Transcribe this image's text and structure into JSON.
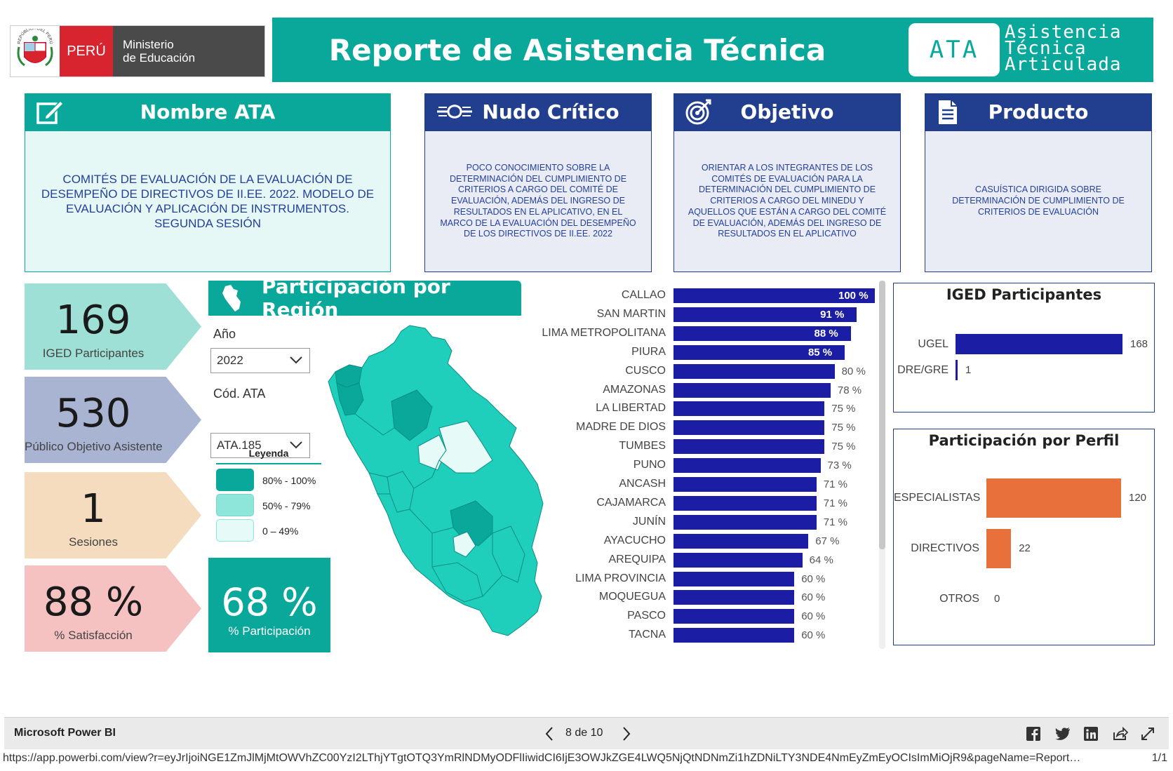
{
  "header": {
    "peru_label": "PERÚ",
    "ministry_line1": "Ministerio",
    "ministry_line2": "de Educación",
    "seal_text": "REPÚBLICA DEL PERÚ",
    "title": "Reporte de Asistencia Técnica",
    "ata_logo": "ATA",
    "ata_line1": "Asistencia",
    "ata_line2": "Técnica",
    "ata_line3": "Articulada"
  },
  "cards": {
    "nombre": {
      "title": "Nombre ATA",
      "text": "COMITÉS DE EVALUACIÓN DE LA EVALUACIÓN DE DESEMPEÑO DE DIRECTIVOS DE II.EE. 2022. MODELO DE EVALUACIÓN Y APLICACIÓN DE INSTRUMENTOS. SEGUNDA SESIÓN"
    },
    "nudo": {
      "title": "Nudo Crítico",
      "text": "POCO CONOCIMIENTO SOBRE LA DETERMINACIÓN DEL CUMPLIMIENTO DE CRITERIOS A CARGO DEL COMITÉ DE EVALUACIÓN, ADEMÁS DEL INGRESO DE RESULTADOS EN EL APLICATIVO, EN EL MARCO DE LA EVALUACIÓN DEL DESEMPEÑO DE LOS DIRECTIVOS DE II.EE. 2022"
    },
    "objetivo": {
      "title": "Objetivo",
      "text": "ORIENTAR A LOS INTEGRANTES DE LOS COMITÉS DE EVALUACIÓN PARA LA DETERMINACIÓN DEL CUMPLIMIENTO DE CRITERIOS A CARGO DEL MINEDU Y AQUELLOS QUE ESTÁN A CARGO DEL COMITÉ DE EVALUACIÓN, ADEMÁS DEL INGRESO DE RESULTADOS EN EL APLICATIVO"
    },
    "producto": {
      "title": "Producto",
      "text": "CASUÍSTICA DIRIGIDA SOBRE DETERMINACIÓN DE CUMPLIMIENTO DE CRITERIOS DE EVALUACIÓN"
    }
  },
  "kpis": {
    "iged": {
      "value": "169",
      "label": "IGED Participantes",
      "color": "#9fe0d6"
    },
    "publico": {
      "value": "530",
      "label": "Público Objetivo Asistente",
      "color": "#a9b4d2"
    },
    "sesiones": {
      "value": "1",
      "label": "Sesiones",
      "color": "#f5dcbf"
    },
    "satisfaccion": {
      "value": "88 %",
      "label": "% Satisfacción",
      "color": "#f5c1c1"
    }
  },
  "region": {
    "title": "Participación por Región",
    "year_label": "Año",
    "year_value": "2022",
    "code_label": "Cód. ATA",
    "code_value": "ATA.185",
    "legend_title": "Leyenda",
    "legend": [
      {
        "label": "80% - 100%",
        "color": "#0aa89a"
      },
      {
        "label": "50% - 79%",
        "color": "#8ee6da"
      },
      {
        "label": "0 – 49%",
        "color": "#e6fbf8"
      }
    ],
    "participation_value": "68 %",
    "participation_label": "% Participación"
  },
  "chart_data": [
    {
      "type": "bar",
      "orientation": "horizontal",
      "categories": [
        "CALLAO",
        "SAN MARTIN",
        "LIMA METROPOLITANA",
        "PIURA",
        "CUSCO",
        "AMAZONAS",
        "LA LIBERTAD",
        "MADRE DE DIOS",
        "TUMBES",
        "PUNO",
        "ANCASH",
        "CAJAMARCA",
        "JUNÍN",
        "AYACUCHO",
        "AREQUIPA",
        "LIMA PROVINCIA",
        "MOQUEGUA",
        "PASCO",
        "TACNA"
      ],
      "values": [
        100,
        91,
        88,
        85,
        80,
        78,
        75,
        75,
        75,
        73,
        71,
        71,
        71,
        67,
        64,
        60,
        60,
        60,
        60
      ],
      "value_labels": [
        "100 %",
        "91 %",
        "88 %",
        "85 %",
        "80 %",
        "78 %",
        "75 %",
        "75 %",
        "75 %",
        "73 %",
        "71 %",
        "71 %",
        "71 %",
        "67 %",
        "64 %",
        "60 %",
        "60 %",
        "60 %",
        "60 %"
      ],
      "color": "#1b1ea5",
      "xlim": [
        0,
        100
      ]
    },
    {
      "type": "bar",
      "orientation": "horizontal",
      "title": "IGED Participantes",
      "categories": [
        "UGEL",
        "DRE/GRE"
      ],
      "values": [
        168,
        1
      ],
      "color": "#1b1ea5"
    },
    {
      "type": "bar",
      "orientation": "horizontal",
      "title": "Participación por Perfil",
      "categories": [
        "ESPECIALISTAS",
        "DIRECTIVOS",
        "OTROS"
      ],
      "values": [
        120,
        22,
        0
      ],
      "color": "#e8703a"
    }
  ],
  "footer": {
    "brand": "Microsoft Power BI",
    "page": "8 de 10",
    "url": "https://app.powerbi.com/view?r=eyJrIjoiNGE1ZmJlMjMtOWVhZC00YzI2LThjYTgtOTQ3YmRlNDMyODFlIiwidCI6IjE3OWJkZGE4LWQ5NjQtNDNmZi1hZDNiLTY3NDE4NmEyZmEyOCIsImMiOjR9&pageName=Report…",
    "pages": "1/1"
  }
}
